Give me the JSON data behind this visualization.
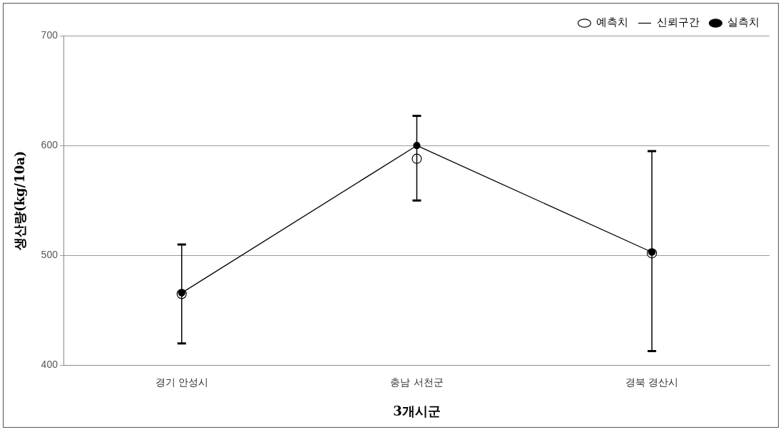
{
  "chart_data": {
    "type": "line",
    "xlabel": "3개시군",
    "ylabel": "생산량(kg/10a)",
    "categories": [
      "경기 안성시",
      "충남 서천군",
      "경북 경산시"
    ],
    "series": [
      {
        "name": "예측치",
        "type": "scatter",
        "marker": "circle",
        "color": "#000000",
        "values": [
          465,
          588,
          502
        ],
        "errors": [
          [
            420,
            510
          ],
          [
            550,
            627
          ],
          [
            413,
            595
          ]
        ]
      },
      {
        "name": "신뢰구간",
        "type": "scatter",
        "marker": "none",
        "color": "#000000",
        "values": [
          null,
          null,
          null
        ]
      },
      {
        "name": "실측치",
        "marker": "circle",
        "color": "#000000",
        "values": [
          466,
          600,
          503
        ]
      }
    ],
    "ylim": [
      400,
      700
    ],
    "yticks": [
      400,
      500,
      600,
      700
    ],
    "grid": "y",
    "legend": "top right"
  }
}
